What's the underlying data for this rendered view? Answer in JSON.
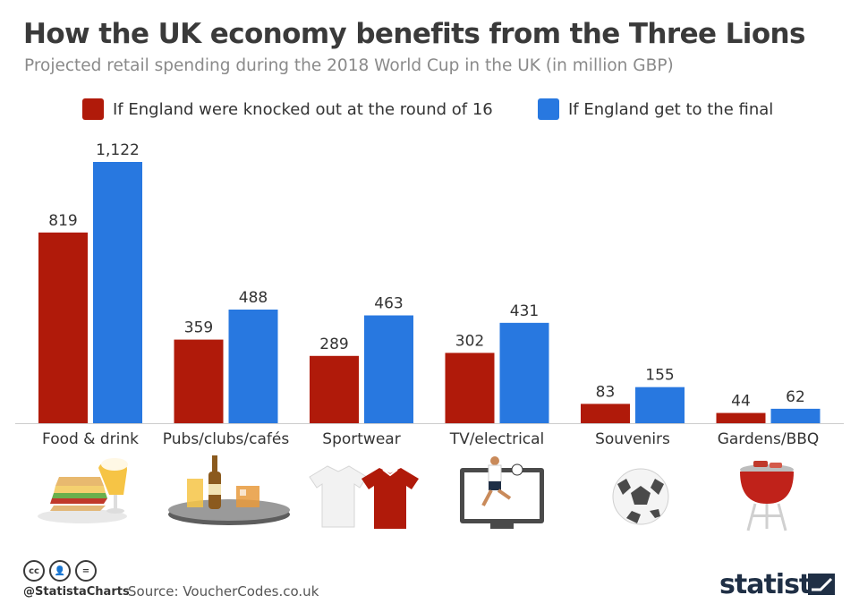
{
  "title": "How the UK economy benefits from the Three Lions",
  "subtitle": "Projected retail spending during the 2018 World Cup in the UK (in million GBP)",
  "chart_data": {
    "type": "bar",
    "categories": [
      "Food & drink",
      "Pubs/clubs/cafés",
      "Sportwear",
      "TV/electrical",
      "Souvenirs",
      "Gardens/BBQ"
    ],
    "series": [
      {
        "name": "If England were knocked out at the round of 16",
        "color": "#b01a0a",
        "values": [
          819,
          359,
          289,
          302,
          83,
          44
        ],
        "labels": [
          "819",
          "359",
          "289",
          "302",
          "83",
          "44"
        ]
      },
      {
        "name": "If England get to the final",
        "color": "#2878e0",
        "values": [
          1122,
          488,
          463,
          431,
          155,
          62
        ],
        "labels": [
          "1,122",
          "488",
          "463",
          "431",
          "155",
          "62"
        ]
      }
    ],
    "ylim": [
      0,
      1122
    ],
    "grid": false,
    "legend_position": "top"
  },
  "icons": [
    "sandwich-and-beer-icon",
    "drinks-tray-icon",
    "football-shirts-icon",
    "tv-footballer-icon",
    "football-icon",
    "bbq-grill-icon"
  ],
  "footer": {
    "cc_icons": [
      "cc",
      "by",
      "nd"
    ],
    "handle": "@StatistaCharts",
    "source": "Source: VoucherCodes.co.uk",
    "brand": "statista"
  }
}
